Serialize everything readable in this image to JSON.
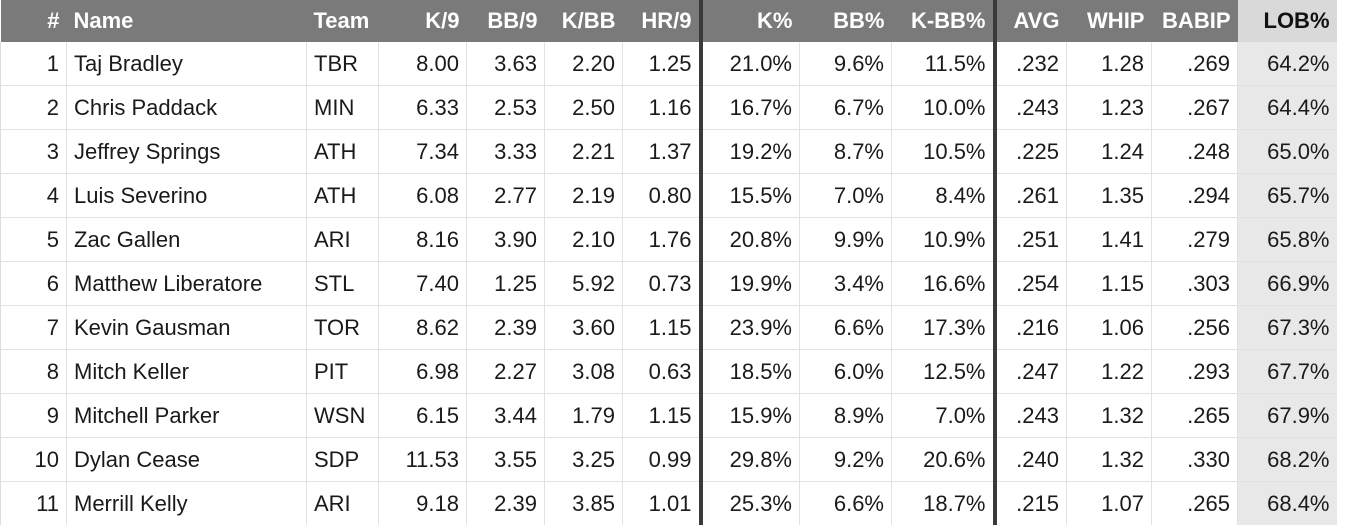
{
  "columns": [
    "#",
    "Name",
    "Team",
    "K/9",
    "BB/9",
    "K/BB",
    "HR/9",
    "K%",
    "BB%",
    "K-BB%",
    "AVG",
    "WHIP",
    "BABIP",
    "LOB%"
  ],
  "sorted_column": "LOB%",
  "rows": [
    [
      "1",
      "Taj Bradley",
      "TBR",
      "8.00",
      "3.63",
      "2.20",
      "1.25",
      "21.0%",
      "9.6%",
      "11.5%",
      ".232",
      "1.28",
      ".269",
      "64.2%"
    ],
    [
      "2",
      "Chris Paddack",
      "MIN",
      "6.33",
      "2.53",
      "2.50",
      "1.16",
      "16.7%",
      "6.7%",
      "10.0%",
      ".243",
      "1.23",
      ".267",
      "64.4%"
    ],
    [
      "3",
      "Jeffrey Springs",
      "ATH",
      "7.34",
      "3.33",
      "2.21",
      "1.37",
      "19.2%",
      "8.7%",
      "10.5%",
      ".225",
      "1.24",
      ".248",
      "65.0%"
    ],
    [
      "4",
      "Luis Severino",
      "ATH",
      "6.08",
      "2.77",
      "2.19",
      "0.80",
      "15.5%",
      "7.0%",
      "8.4%",
      ".261",
      "1.35",
      ".294",
      "65.7%"
    ],
    [
      "5",
      "Zac Gallen",
      "ARI",
      "8.16",
      "3.90",
      "2.10",
      "1.76",
      "20.8%",
      "9.9%",
      "10.9%",
      ".251",
      "1.41",
      ".279",
      "65.8%"
    ],
    [
      "6",
      "Matthew Liberatore",
      "STL",
      "7.40",
      "1.25",
      "5.92",
      "0.73",
      "19.9%",
      "3.4%",
      "16.6%",
      ".254",
      "1.15",
      ".303",
      "66.9%"
    ],
    [
      "7",
      "Kevin Gausman",
      "TOR",
      "8.62",
      "2.39",
      "3.60",
      "1.15",
      "23.9%",
      "6.6%",
      "17.3%",
      ".216",
      "1.06",
      ".256",
      "67.3%"
    ],
    [
      "8",
      "Mitch Keller",
      "PIT",
      "6.98",
      "2.27",
      "3.08",
      "0.63",
      "18.5%",
      "6.0%",
      "12.5%",
      ".247",
      "1.22",
      ".293",
      "67.7%"
    ],
    [
      "9",
      "Mitchell Parker",
      "WSN",
      "6.15",
      "3.44",
      "1.79",
      "1.15",
      "15.9%",
      "8.9%",
      "7.0%",
      ".243",
      "1.32",
      ".265",
      "67.9%"
    ],
    [
      "10",
      "Dylan Cease",
      "SDP",
      "11.53",
      "3.55",
      "3.25",
      "0.99",
      "29.8%",
      "9.2%",
      "20.6%",
      ".240",
      "1.32",
      ".330",
      "68.2%"
    ],
    [
      "11",
      "Merrill Kelly",
      "ARI",
      "9.18",
      "2.39",
      "3.85",
      "1.01",
      "25.3%",
      "6.6%",
      "18.7%",
      ".215",
      "1.07",
      ".265",
      "68.4%"
    ]
  ]
}
